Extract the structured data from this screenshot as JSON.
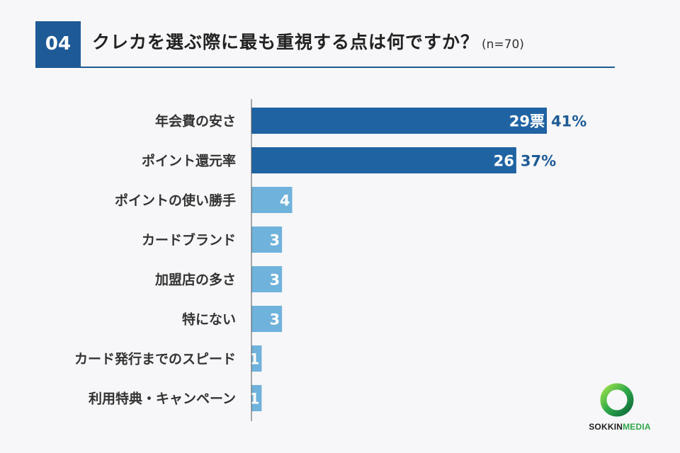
{
  "header": {
    "number": "04",
    "title": "クレカを選ぶ際に最も重視する点は何ですか？",
    "sample": "(n=70)"
  },
  "colors": {
    "accent": "#1e5a96",
    "bar_dark": "#1f63a3",
    "bar_light": "#6fb2dc",
    "logo_green": "#2fa84a"
  },
  "chart_data": {
    "type": "bar",
    "orientation": "horizontal",
    "categories": [
      "年会費の安さ",
      "ポイント還元率",
      "ポイントの使い勝手",
      "カードブランド",
      "加盟店の多さ",
      "特にない",
      "カード発行までのスピード",
      "利用特典・キャンペーン"
    ],
    "values": [
      29,
      26,
      4,
      3,
      3,
      3,
      1,
      1
    ],
    "value_labels": [
      "29票",
      "26",
      "4",
      "3",
      "3",
      "3",
      "1",
      "1"
    ],
    "percent_labels": [
      "41%",
      "37%",
      "",
      "",
      "",
      "",
      "",
      ""
    ],
    "highlight": [
      true,
      true,
      false,
      false,
      false,
      false,
      false,
      false
    ],
    "title": "",
    "xlabel": "",
    "ylabel": "",
    "xlim": [
      0,
      29
    ],
    "grid": false,
    "legend": "none"
  },
  "logo": {
    "brand_a": "SOKKIN",
    "brand_b": "MEDIA",
    "icon": "ring-logo-icon"
  }
}
